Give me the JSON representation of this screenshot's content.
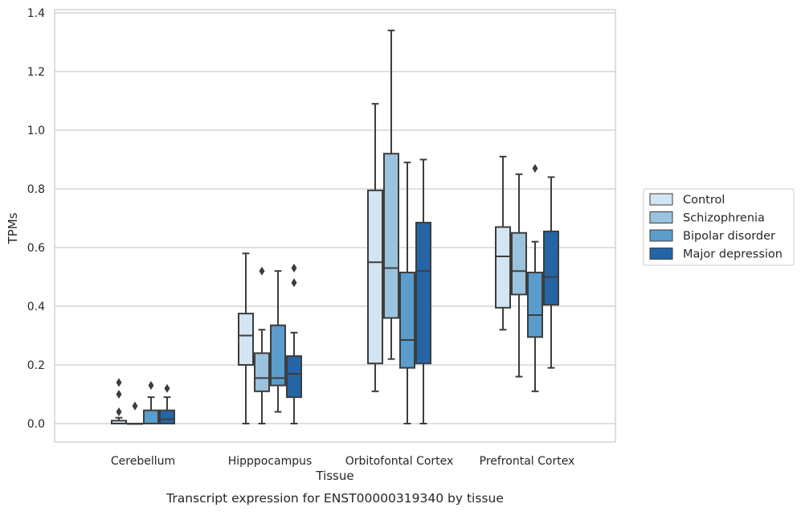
{
  "chart_data": {
    "type": "box",
    "xlabel": "Tissue",
    "ylabel": "TPMs",
    "caption": "Transcript expression for ENST00000319340 by tissue",
    "ylim": [
      -0.06,
      1.41
    ],
    "yticks": [
      "0.0",
      "0.2",
      "0.4",
      "0.6",
      "0.8",
      "1.0",
      "1.2",
      "1.4"
    ],
    "grid": true,
    "legend_position": "right",
    "categories": [
      "Cerebellum",
      "Hipppocampus",
      "Orbitofontal Cortex",
      "Prefrontal Cortex"
    ],
    "series": [
      {
        "name": "Control",
        "color": "#d3e4f3",
        "boxes": [
          {
            "q1": 0.0,
            "median": 0.0,
            "q3": 0.01,
            "whisker_low": 0.0,
            "whisker_high": 0.02,
            "outliers": [
              0.04,
              0.1,
              0.14
            ]
          },
          {
            "q1": 0.2,
            "median": 0.3,
            "q3": 0.375,
            "whisker_low": 0.0,
            "whisker_high": 0.58,
            "outliers": []
          },
          {
            "q1": 0.205,
            "median": 0.55,
            "q3": 0.795,
            "whisker_low": 0.11,
            "whisker_high": 1.09,
            "outliers": []
          },
          {
            "q1": 0.395,
            "median": 0.57,
            "q3": 0.67,
            "whisker_low": 0.32,
            "whisker_high": 0.91,
            "outliers": []
          }
        ]
      },
      {
        "name": "Schizophrenia",
        "color": "#9ac3dd",
        "boxes": [
          {
            "q1": 0.0,
            "median": 0.0,
            "q3": 0.0,
            "whisker_low": 0.0,
            "whisker_high": 0.0,
            "outliers": [
              0.06
            ]
          },
          {
            "q1": 0.11,
            "median": 0.155,
            "q3": 0.24,
            "whisker_low": 0.0,
            "whisker_high": 0.32,
            "outliers": [
              0.52
            ]
          },
          {
            "q1": 0.36,
            "median": 0.53,
            "q3": 0.92,
            "whisker_low": 0.22,
            "whisker_high": 1.34,
            "outliers": []
          },
          {
            "q1": 0.44,
            "median": 0.52,
            "q3": 0.65,
            "whisker_low": 0.16,
            "whisker_high": 0.85,
            "outliers": []
          }
        ]
      },
      {
        "name": "Bipolar disorder",
        "color": "#5a9ccc",
        "boxes": [
          {
            "q1": 0.0,
            "median": 0.0,
            "q3": 0.045,
            "whisker_low": 0.0,
            "whisker_high": 0.09,
            "outliers": [
              0.13
            ]
          },
          {
            "q1": 0.13,
            "median": 0.155,
            "q3": 0.335,
            "whisker_low": 0.04,
            "whisker_high": 0.52,
            "outliers": []
          },
          {
            "q1": 0.19,
            "median": 0.285,
            "q3": 0.515,
            "whisker_low": 0.0,
            "whisker_high": 0.89,
            "outliers": []
          },
          {
            "q1": 0.295,
            "median": 0.37,
            "q3": 0.515,
            "whisker_low": 0.11,
            "whisker_high": 0.62,
            "outliers": [
              0.87
            ]
          }
        ]
      },
      {
        "name": "Major depression",
        "color": "#2565a6",
        "boxes": [
          {
            "q1": 0.0,
            "median": 0.015,
            "q3": 0.045,
            "whisker_low": 0.0,
            "whisker_high": 0.09,
            "outliers": [
              0.12
            ]
          },
          {
            "q1": 0.09,
            "median": 0.17,
            "q3": 0.23,
            "whisker_low": 0.0,
            "whisker_high": 0.31,
            "outliers": [
              0.48,
              0.53
            ]
          },
          {
            "q1": 0.205,
            "median": 0.52,
            "q3": 0.685,
            "whisker_low": 0.0,
            "whisker_high": 0.9,
            "outliers": []
          },
          {
            "q1": 0.405,
            "median": 0.5,
            "q3": 0.655,
            "whisker_low": 0.19,
            "whisker_high": 0.84,
            "outliers": []
          }
        ]
      }
    ]
  }
}
